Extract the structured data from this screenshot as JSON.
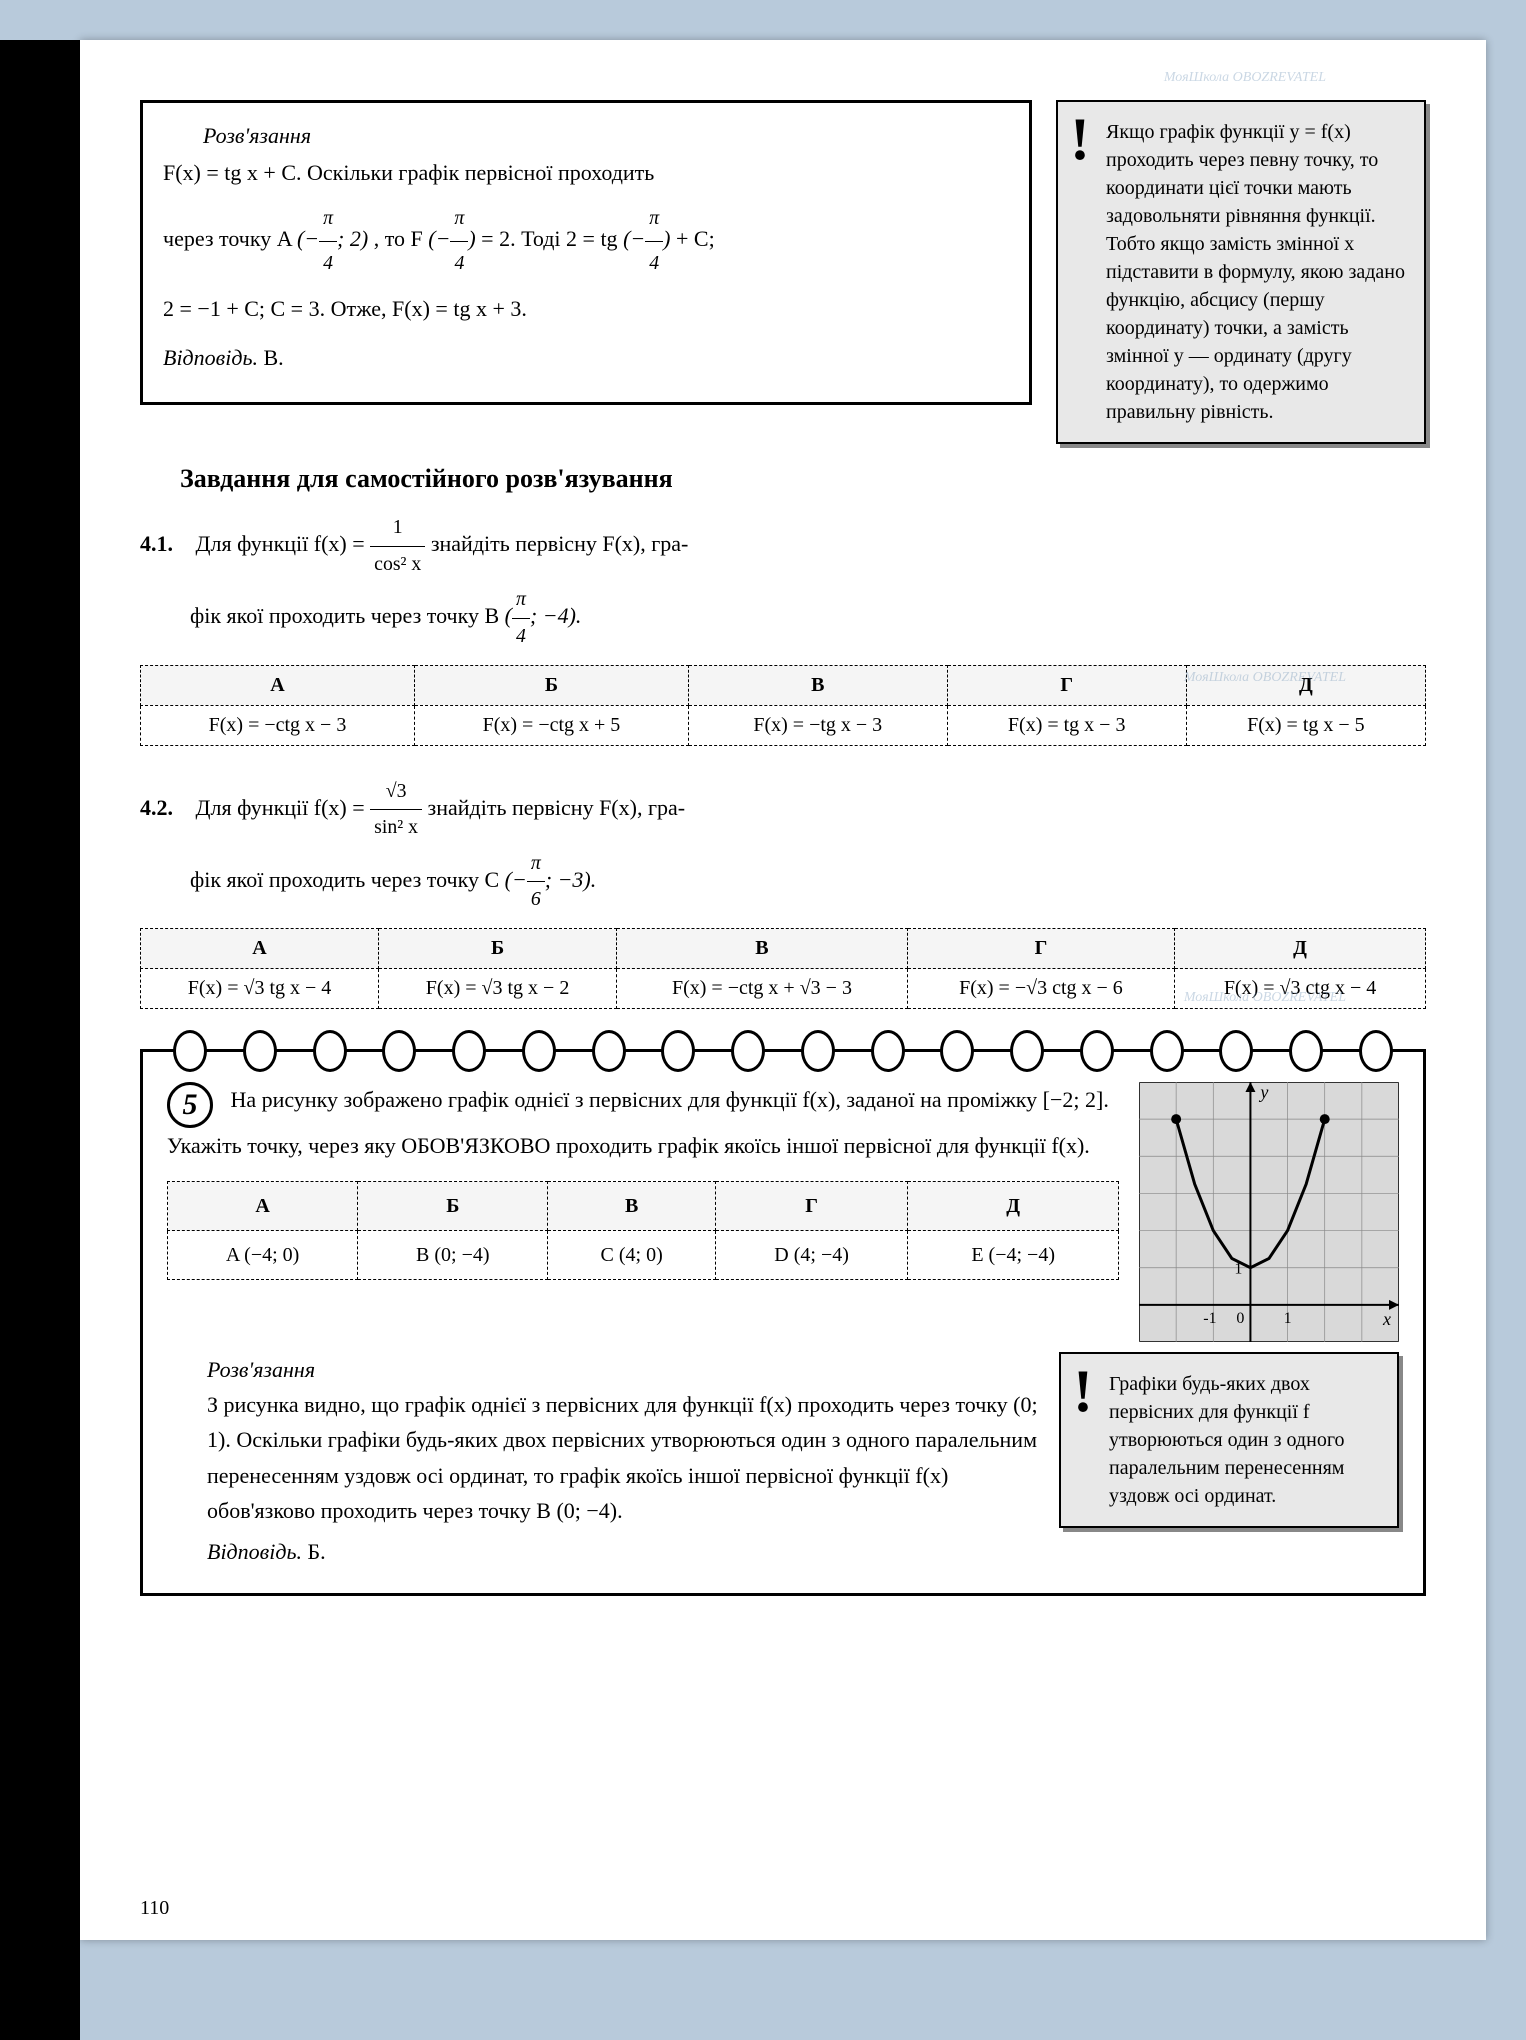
{
  "solution1": {
    "label": "Розв'язання",
    "line1": "F(x) = tg x + C. Оскільки графік первісної проходить",
    "line2_a": "через точку A",
    "line2_b": ", то F",
    "line2_c": "= 2. Тоді 2 = tg",
    "line2_d": "+ C;",
    "point_x": "−π/4",
    "point_y": "2",
    "line3": "2 = −1 + C; C = 3. Отже, F(x) = tg x + 3.",
    "answer_label": "Відповідь.",
    "answer": "В."
  },
  "note1": "Якщо графік функції y = f(x) проходить через певну точку, то координати цієї точки мають задовольняти рівняння функції. Тобто якщо замість змінної x підставити в формулу, якою задано функцію, абсцису (першу координату) точки, а замість змінної y — ординату (другу координату), то одержимо правильну рівність.",
  "section_title": "Завдання для самостійного розв'язування",
  "task41": {
    "num": "4.1.",
    "text_a": "Для функції f(x) =",
    "frac_n": "1",
    "frac_d": "cos² x",
    "text_b": "знайдіть первісну F(x), гра-",
    "text_c": "фік якої проходить через точку B",
    "point": "(π/4; −4)",
    "headers": [
      "А",
      "Б",
      "В",
      "Г",
      "Д"
    ],
    "cells": [
      "F(x) = −ctg x − 3",
      "F(x) = −ctg x + 5",
      "F(x) = −tg x − 3",
      "F(x) = tg x − 3",
      "F(x) = tg x − 5"
    ]
  },
  "task42": {
    "num": "4.2.",
    "text_a": "Для функції f(x) =",
    "frac_n": "√3",
    "frac_d": "sin² x",
    "text_b": "знайдіть первісну F(x), гра-",
    "text_c": "фік якої проходить через точку C",
    "point": "(−π/6; −3)",
    "headers": [
      "А",
      "Б",
      "В",
      "Г",
      "Д"
    ],
    "cells": [
      "F(x) = √3 tg x − 4",
      "F(x) = √3 tg x − 2",
      "F(x) = −ctg x + √3 − 3",
      "F(x) = −√3 ctg x − 6",
      "F(x) = √3 ctg x − 4"
    ]
  },
  "task5": {
    "num": "5",
    "text": "На рисунку зображено графік однієї з первісних для функції f(x), заданої на проміжку [−2; 2]. Укажіть точку, через яку ОБОВ'ЯЗКОВО проходить графік якоїсь іншої первісної для функції f(x).",
    "headers": [
      "А",
      "Б",
      "В",
      "Г",
      "Д"
    ],
    "cells": [
      "A (−4; 0)",
      "B (0; −4)",
      "C (4; 0)",
      "D (4; −4)",
      "E (−4; −4)"
    ],
    "sol_label": "Розв'язання",
    "sol_text": "З рисунка видно, що графік однієї з первісних для функції f(x) проходить через точку (0; 1). Оскільки графіки будь-яких двох первісних утворюються один з одного паралельним перенесенням уздовж осі ординат, то графік якоїсь іншої первісної функції f(x) обов'язково проходить через точку B (0; −4).",
    "answer_label": "Відповідь.",
    "answer": "Б."
  },
  "note2": "Графіки будь-яких двох первісних для функції f утворюються один з одного паралельним перенесенням уздовж осі ординат.",
  "graph": {
    "xmin": -3,
    "xmax": 4,
    "ymin": -1,
    "ymax": 6,
    "grid_color": "#888",
    "bg_color": "#d9d9d9",
    "curve_color": "#000",
    "points": [
      [
        -2,
        5
      ],
      [
        -1.5,
        3.25
      ],
      [
        -1,
        2
      ],
      [
        -0.5,
        1.25
      ],
      [
        0,
        1
      ],
      [
        0.5,
        1.25
      ],
      [
        1,
        2
      ],
      [
        1.5,
        3.25
      ],
      [
        2,
        5
      ]
    ],
    "endpoints": [
      [
        -2,
        5
      ],
      [
        2,
        5
      ]
    ]
  },
  "page_number": "110",
  "watermark_text": "МояШкола  OBOZREVATEL"
}
